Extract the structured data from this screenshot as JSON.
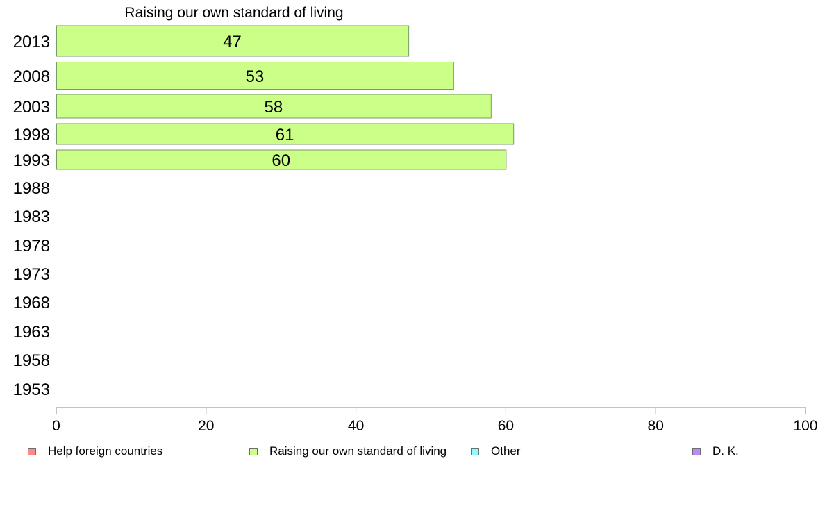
{
  "chart_data": {
    "type": "bar",
    "orientation": "horizontal",
    "title": "Raising our own standard of living",
    "categories": [
      "2013",
      "2008",
      "2003",
      "1998",
      "1993",
      "1988",
      "1983",
      "1978",
      "1973",
      "1968",
      "1963",
      "1958",
      "1953"
    ],
    "series": [
      {
        "name": "Raising our own standard of living",
        "color": "#ccff88",
        "values": [
          47,
          53,
          58,
          61,
          60,
          null,
          null,
          null,
          null,
          null,
          null,
          null,
          null
        ]
      }
    ],
    "xlim": [
      0,
      100
    ],
    "xticks": [
      0,
      20,
      40,
      60,
      80,
      100
    ],
    "grid": false,
    "legend_position": "bottom"
  },
  "legend": [
    {
      "label": "Help foreign countries",
      "color": "#ff8888"
    },
    {
      "label": "Raising our own standard of living",
      "color": "#ccff88"
    },
    {
      "label": "Other",
      "color": "#88ffff"
    },
    {
      "label": "D. K.",
      "color": "#bb88ff"
    }
  ]
}
